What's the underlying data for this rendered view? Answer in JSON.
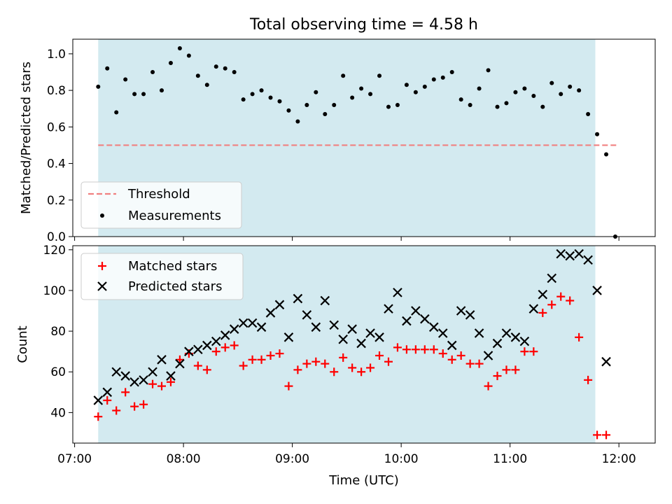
{
  "figure": {
    "title": "Total observing time = 4.58 h",
    "xlabel": "Time (UTC)"
  },
  "colors": {
    "span": "#d3eaf0",
    "threshold": "#f08080",
    "matched": "#ff0000",
    "predicted": "#000000"
  },
  "chart_data": [
    {
      "type": "scatter",
      "panel": "top",
      "ylabel": "Matched/Predicted stars",
      "xlim": [
        "06:59",
        "12:20"
      ],
      "ylim": [
        0,
        1.08
      ],
      "x_ticks": [
        "07:00",
        "08:00",
        "09:00",
        "10:00",
        "11:00",
        "12:00"
      ],
      "y_ticks": [
        "0.0",
        "0.2",
        "0.4",
        "0.6",
        "0.8",
        "1.0"
      ],
      "legend_position": "lower-left",
      "span": [
        "07:13",
        "11:47"
      ],
      "threshold": {
        "name": "Threshold",
        "value": 0.5,
        "x_range": [
          "07:13",
          "12:00"
        ]
      },
      "series": [
        {
          "name": "Measurements",
          "x": [
            "07:13",
            "07:18",
            "07:23",
            "07:28",
            "07:33",
            "07:38",
            "07:43",
            "07:48",
            "07:53",
            "07:58",
            "08:03",
            "08:08",
            "08:13",
            "08:18",
            "08:23",
            "08:28",
            "08:33",
            "08:38",
            "08:43",
            "08:48",
            "08:53",
            "08:58",
            "09:03",
            "09:08",
            "09:13",
            "09:18",
            "09:23",
            "09:28",
            "09:33",
            "09:38",
            "09:43",
            "09:48",
            "09:53",
            "09:58",
            "10:03",
            "10:08",
            "10:13",
            "10:18",
            "10:23",
            "10:28",
            "10:33",
            "10:38",
            "10:43",
            "10:48",
            "10:53",
            "10:58",
            "11:03",
            "11:08",
            "11:13",
            "11:18",
            "11:23",
            "11:28",
            "11:33",
            "11:38",
            "11:43",
            "11:48",
            "11:53",
            "11:58"
          ],
          "y": [
            0.82,
            0.92,
            0.68,
            0.86,
            0.78,
            0.78,
            0.9,
            0.8,
            0.95,
            1.03,
            0.99,
            0.88,
            0.83,
            0.93,
            0.92,
            0.9,
            0.75,
            0.78,
            0.8,
            0.76,
            0.74,
            0.69,
            0.63,
            0.72,
            0.79,
            0.67,
            0.72,
            0.88,
            0.76,
            0.81,
            0.78,
            0.88,
            0.71,
            0.72,
            0.83,
            0.79,
            0.82,
            0.86,
            0.87,
            0.9,
            0.75,
            0.72,
            0.81,
            0.91,
            0.71,
            0.73,
            0.79,
            0.81,
            0.77,
            0.71,
            0.84,
            0.78,
            0.82,
            0.8,
            0.67,
            0.56,
            0.45,
            0.0
          ]
        }
      ]
    },
    {
      "type": "scatter",
      "panel": "bottom",
      "ylabel": "Count",
      "xlabel": "Time (UTC)",
      "xlim": [
        "06:59",
        "12:20"
      ],
      "ylim": [
        25,
        122
      ],
      "x_ticks": [
        "07:00",
        "08:00",
        "09:00",
        "10:00",
        "11:00",
        "12:00"
      ],
      "y_ticks": [
        "40",
        "60",
        "80",
        "100",
        "120"
      ],
      "legend_position": "upper-left",
      "span": [
        "07:13",
        "11:47"
      ],
      "series": [
        {
          "name": "Matched stars",
          "marker": "plus",
          "x": [
            "07:13",
            "07:18",
            "07:23",
            "07:28",
            "07:33",
            "07:38",
            "07:43",
            "07:48",
            "07:53",
            "07:58",
            "08:03",
            "08:08",
            "08:13",
            "08:18",
            "08:23",
            "08:28",
            "08:33",
            "08:38",
            "08:43",
            "08:48",
            "08:53",
            "08:58",
            "09:03",
            "09:08",
            "09:13",
            "09:18",
            "09:23",
            "09:28",
            "09:33",
            "09:38",
            "09:43",
            "09:48",
            "09:53",
            "09:58",
            "10:03",
            "10:08",
            "10:13",
            "10:18",
            "10:23",
            "10:28",
            "10:33",
            "10:38",
            "10:43",
            "10:48",
            "10:53",
            "10:58",
            "11:03",
            "11:08",
            "11:13",
            "11:18",
            "11:23",
            "11:28",
            "11:33",
            "11:38",
            "11:43",
            "11:48",
            "11:53",
            "11:58"
          ],
          "y": [
            38,
            46,
            41,
            50,
            43,
            44,
            54,
            53,
            55,
            66,
            69,
            63,
            61,
            70,
            72,
            73,
            63,
            66,
            66,
            68,
            69,
            53,
            61,
            64,
            65,
            64,
            60,
            67,
            62,
            60,
            62,
            68,
            65,
            72,
            71,
            71,
            71,
            71,
            69,
            66,
            68,
            64,
            64,
            53,
            58,
            61,
            61,
            70,
            70,
            89,
            93,
            97,
            95,
            77,
            56,
            29,
            29,
            null
          ]
        },
        {
          "name": "Predicted stars",
          "marker": "x",
          "x": [
            "07:13",
            "07:18",
            "07:23",
            "07:28",
            "07:33",
            "07:38",
            "07:43",
            "07:48",
            "07:53",
            "07:58",
            "08:03",
            "08:08",
            "08:13",
            "08:18",
            "08:23",
            "08:28",
            "08:33",
            "08:38",
            "08:43",
            "08:48",
            "08:53",
            "08:58",
            "09:03",
            "09:08",
            "09:13",
            "09:18",
            "09:23",
            "09:28",
            "09:33",
            "09:38",
            "09:43",
            "09:48",
            "09:53",
            "09:58",
            "10:03",
            "10:08",
            "10:13",
            "10:18",
            "10:23",
            "10:28",
            "10:33",
            "10:38",
            "10:43",
            "10:48",
            "10:53",
            "10:58",
            "11:03",
            "11:08",
            "11:13",
            "11:18",
            "11:23",
            "11:28",
            "11:33",
            "11:38",
            "11:43",
            "11:48",
            "11:53",
            "11:58"
          ],
          "y": [
            46,
            50,
            60,
            58,
            55,
            56,
            60,
            66,
            58,
            64,
            70,
            71,
            73,
            75,
            78,
            81,
            84,
            84,
            82,
            89,
            93,
            77,
            96,
            88,
            82,
            95,
            83,
            76,
            81,
            74,
            79,
            77,
            91,
            99,
            85,
            90,
            86,
            82,
            79,
            73,
            90,
            88,
            79,
            68,
            74,
            79,
            77,
            75,
            91,
            98,
            106,
            118,
            117,
            118,
            115,
            100,
            65,
            null
          ]
        }
      ]
    }
  ]
}
